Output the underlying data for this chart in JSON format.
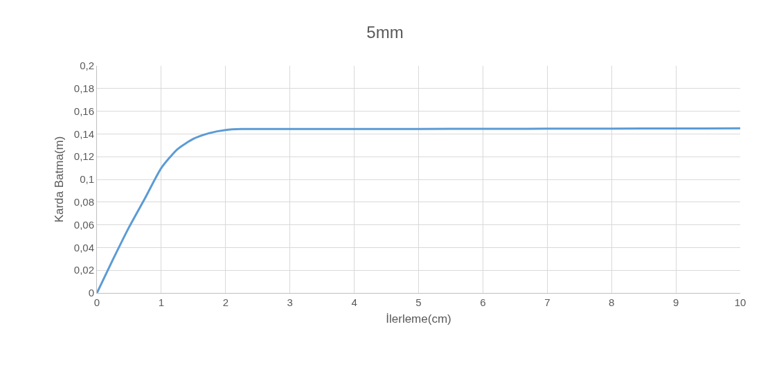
{
  "chart_data": {
    "type": "line",
    "title": "5mm",
    "xlabel": "İlerleme(cm)",
    "ylabel": "Karda Batma(m)",
    "x": [
      0,
      0.25,
      0.5,
      0.75,
      1,
      1.25,
      1.5,
      1.75,
      2,
      2.25,
      3,
      4,
      5,
      6,
      7,
      8,
      9,
      10
    ],
    "series": [
      {
        "color": "#5b9bd5",
        "values": [
          0,
          0.0296,
          0.058,
          0.0837,
          0.11,
          0.1265,
          0.1357,
          0.1408,
          0.1435,
          0.1443,
          0.1443,
          0.1443,
          0.1444,
          0.1445,
          0.1446,
          0.1447,
          0.1448,
          0.1449
        ]
      }
    ],
    "xlim": [
      0,
      10
    ],
    "xticks": [
      0,
      1,
      2,
      3,
      4,
      5,
      6,
      7,
      8,
      9,
      10
    ],
    "ylim": [
      0,
      0.2
    ],
    "yticks": [
      {
        "value": 0,
        "label": "0"
      },
      {
        "value": 0.02,
        "label": "0,02"
      },
      {
        "value": 0.04,
        "label": "0,04"
      },
      {
        "value": 0.06,
        "label": "0,06"
      },
      {
        "value": 0.08,
        "label": "0,08"
      },
      {
        "value": 0.1,
        "label": "0,1"
      },
      {
        "value": 0.12,
        "label": "0,12"
      },
      {
        "value": 0.14,
        "label": "0,14"
      },
      {
        "value": 0.16,
        "label": "0,16"
      },
      {
        "value": 0.18,
        "label": "0,18"
      },
      {
        "value": 0.2,
        "label": "0,2"
      }
    ],
    "grid": true,
    "marker": "none",
    "line_style": "solid"
  }
}
